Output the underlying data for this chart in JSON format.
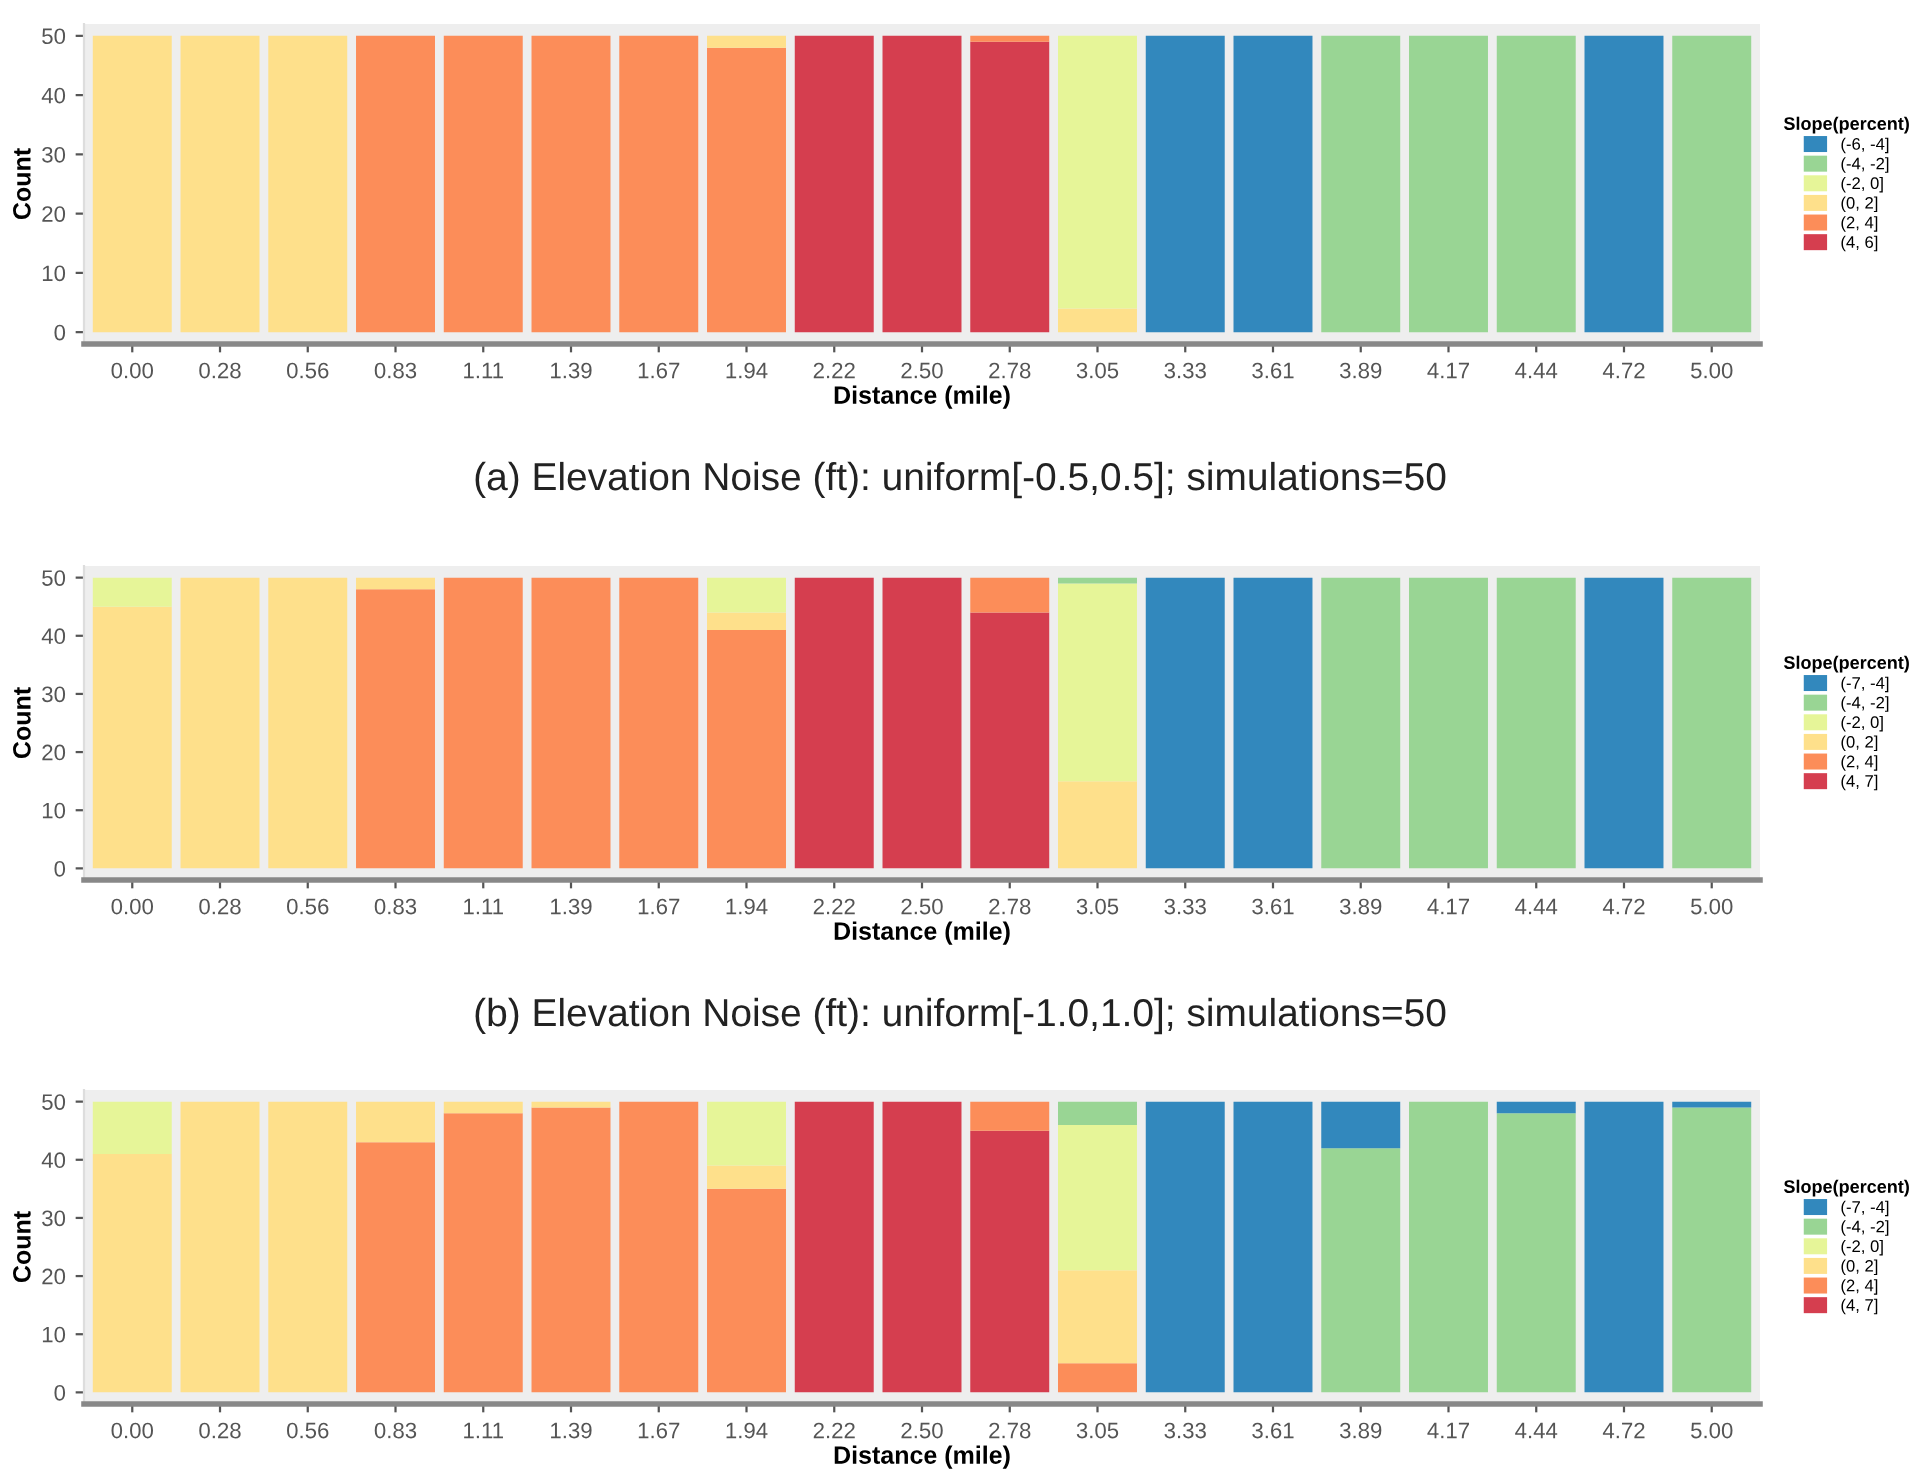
{
  "chart_data": [
    {
      "type": "bar",
      "stacked": true,
      "xlabel": "Distance (mile)",
      "ylabel": "Count",
      "legend_title": "Slope(percent)",
      "legend": "right",
      "ylim": [
        -2,
        52
      ],
      "yticks": [
        0,
        10,
        20,
        30,
        40,
        50
      ],
      "categories": [
        "0.00",
        "0.28",
        "0.56",
        "0.83",
        "1.11",
        "1.39",
        "1.67",
        "1.94",
        "2.22",
        "2.50",
        "2.78",
        "3.05",
        "3.33",
        "3.61",
        "3.89",
        "4.17",
        "4.44",
        "4.72",
        "5.00"
      ],
      "series": [
        {
          "name": "(4, 6]",
          "color": "#d53e4f",
          "values": [
            null,
            null,
            null,
            null,
            null,
            null,
            null,
            null,
            50,
            50,
            49,
            null,
            null,
            null,
            null,
            null,
            null,
            null,
            null
          ]
        },
        {
          "name": "(2, 4]",
          "color": "#fc8d59",
          "values": [
            null,
            null,
            null,
            50,
            50,
            50,
            50,
            48,
            null,
            null,
            1,
            null,
            null,
            null,
            null,
            null,
            null,
            null,
            null
          ]
        },
        {
          "name": "(0, 2]",
          "color": "#fee08b",
          "values": [
            50,
            50,
            50,
            null,
            null,
            null,
            null,
            2,
            null,
            null,
            null,
            4,
            null,
            null,
            null,
            null,
            null,
            null,
            null
          ]
        },
        {
          "name": "(-2, 0]",
          "color": "#e6f598",
          "values": [
            null,
            null,
            null,
            null,
            null,
            null,
            null,
            null,
            null,
            null,
            null,
            46,
            null,
            null,
            null,
            null,
            null,
            null,
            null
          ]
        },
        {
          "name": "(-4, -2]",
          "color": "#99d594",
          "values": [
            null,
            null,
            null,
            null,
            null,
            null,
            null,
            null,
            null,
            null,
            null,
            null,
            null,
            null,
            50,
            50,
            50,
            null,
            50
          ]
        },
        {
          "name": "(-6, -4]",
          "color": "#3288bd",
          "values": [
            null,
            null,
            null,
            null,
            null,
            null,
            null,
            null,
            null,
            null,
            null,
            null,
            50,
            50,
            null,
            null,
            null,
            50,
            null
          ]
        }
      ],
      "annotations": [
        "(a) Elevation Noise (ft): uniform[-0.5,0.5]; simulations=50"
      ]
    },
    {
      "type": "bar",
      "stacked": true,
      "xlabel": "Distance (mile)",
      "ylabel": "Count",
      "legend_title": "Slope(percent)",
      "legend": "right",
      "ylim": [
        -2,
        52
      ],
      "yticks": [
        0,
        10,
        20,
        30,
        40,
        50
      ],
      "categories": [
        "0.00",
        "0.28",
        "0.56",
        "0.83",
        "1.11",
        "1.39",
        "1.67",
        "1.94",
        "2.22",
        "2.50",
        "2.78",
        "3.05",
        "3.33",
        "3.61",
        "3.89",
        "4.17",
        "4.44",
        "4.72",
        "5.00"
      ],
      "series": [
        {
          "name": "(4, 7]",
          "color": "#d53e4f",
          "values": [
            null,
            null,
            null,
            null,
            null,
            null,
            null,
            null,
            50,
            50,
            44,
            null,
            null,
            null,
            null,
            null,
            null,
            null,
            null
          ]
        },
        {
          "name": "(2, 4]",
          "color": "#fc8d59",
          "values": [
            null,
            null,
            null,
            48,
            50,
            50,
            50,
            41,
            null,
            null,
            6,
            null,
            null,
            null,
            null,
            null,
            null,
            null,
            null
          ]
        },
        {
          "name": "(0, 2]",
          "color": "#fee08b",
          "values": [
            45,
            50,
            50,
            2,
            null,
            null,
            null,
            3,
            null,
            null,
            null,
            15,
            null,
            null,
            null,
            null,
            null,
            null,
            null
          ]
        },
        {
          "name": "(-2, 0]",
          "color": "#e6f598",
          "values": [
            5,
            null,
            null,
            null,
            null,
            null,
            null,
            6,
            null,
            null,
            null,
            34,
            null,
            null,
            null,
            null,
            null,
            null,
            null
          ]
        },
        {
          "name": "(-4, -2]",
          "color": "#99d594",
          "values": [
            null,
            null,
            null,
            null,
            null,
            null,
            null,
            null,
            null,
            null,
            null,
            1,
            null,
            null,
            50,
            50,
            50,
            null,
            50
          ]
        },
        {
          "name": "(-7, -4]",
          "color": "#3288bd",
          "values": [
            null,
            null,
            null,
            null,
            null,
            null,
            null,
            null,
            null,
            null,
            null,
            null,
            50,
            50,
            null,
            null,
            null,
            50,
            null
          ]
        }
      ],
      "annotations": [
        "(b) Elevation Noise (ft): uniform[-1.0,1.0]; simulations=50"
      ]
    },
    {
      "type": "bar",
      "stacked": true,
      "xlabel": "Distance (mile)",
      "ylabel": "Count",
      "legend_title": "Slope(percent)",
      "legend": "right",
      "ylim": [
        -2,
        52
      ],
      "yticks": [
        0,
        10,
        20,
        30,
        40,
        50
      ],
      "categories": [
        "0.00",
        "0.28",
        "0.56",
        "0.83",
        "1.11",
        "1.39",
        "1.67",
        "1.94",
        "2.22",
        "2.50",
        "2.78",
        "3.05",
        "3.33",
        "3.61",
        "3.89",
        "4.17",
        "4.44",
        "4.72",
        "5.00"
      ],
      "series": [
        {
          "name": "(4, 7]",
          "color": "#d53e4f",
          "values": [
            null,
            null,
            null,
            null,
            null,
            null,
            null,
            null,
            50,
            50,
            45,
            null,
            null,
            null,
            null,
            null,
            null,
            null,
            null
          ]
        },
        {
          "name": "(2, 4]",
          "color": "#fc8d59",
          "values": [
            null,
            null,
            null,
            43,
            48,
            49,
            50,
            35,
            null,
            null,
            5,
            5,
            null,
            null,
            null,
            null,
            null,
            null,
            null
          ]
        },
        {
          "name": "(0, 2]",
          "color": "#fee08b",
          "values": [
            41,
            50,
            50,
            7,
            2,
            1,
            null,
            4,
            null,
            null,
            null,
            16,
            null,
            null,
            null,
            null,
            null,
            null,
            null
          ]
        },
        {
          "name": "(-2, 0]",
          "color": "#e6f598",
          "values": [
            9,
            null,
            null,
            null,
            null,
            null,
            null,
            11,
            null,
            null,
            null,
            25,
            null,
            null,
            null,
            null,
            null,
            null,
            null
          ]
        },
        {
          "name": "(-4, -2]",
          "color": "#99d594",
          "values": [
            null,
            null,
            null,
            null,
            null,
            null,
            null,
            null,
            null,
            null,
            null,
            4,
            null,
            null,
            42,
            50,
            48,
            null,
            49
          ]
        },
        {
          "name": "(-7, -4]",
          "color": "#3288bd",
          "values": [
            null,
            null,
            null,
            null,
            null,
            null,
            null,
            null,
            null,
            null,
            null,
            null,
            50,
            50,
            8,
            null,
            2,
            50,
            1
          ]
        }
      ]
    }
  ]
}
